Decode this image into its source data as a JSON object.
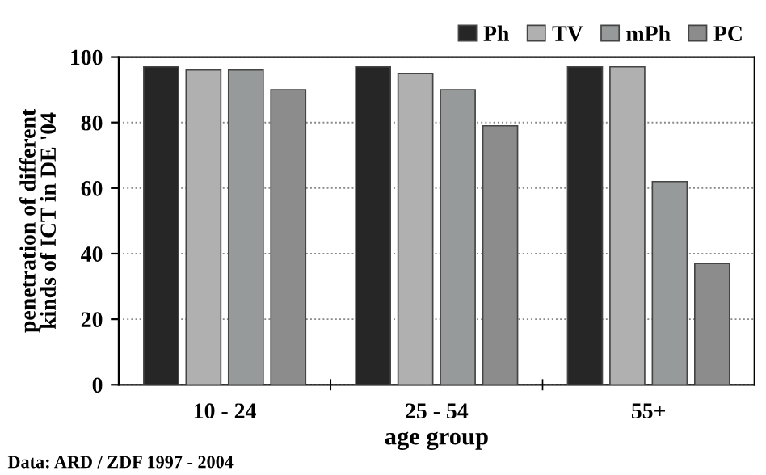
{
  "chart_data": {
    "type": "bar",
    "xlabel": "age group",
    "ylabel": "penetration of different\nkinds of ICT in DE '04",
    "categories": [
      "10 - 24",
      "25 - 54",
      "55+"
    ],
    "series": [
      {
        "name": "Ph",
        "color": "#262626",
        "values": [
          97,
          97,
          97
        ]
      },
      {
        "name": "TV",
        "color": "#b0b0b0",
        "values": [
          96,
          95,
          97
        ]
      },
      {
        "name": "mPh",
        "color": "#969a9a",
        "values": [
          96,
          90,
          62
        ]
      },
      {
        "name": "PC",
        "color": "#8c8c8c",
        "values": [
          90,
          79,
          37
        ]
      }
    ],
    "ylim": [
      0,
      100
    ],
    "yticks": [
      0,
      20,
      40,
      60,
      80,
      100
    ],
    "grid": "y",
    "legend": "top right",
    "annotations": [
      "Data: ARD / ZDF 1997 - 2004"
    ]
  }
}
